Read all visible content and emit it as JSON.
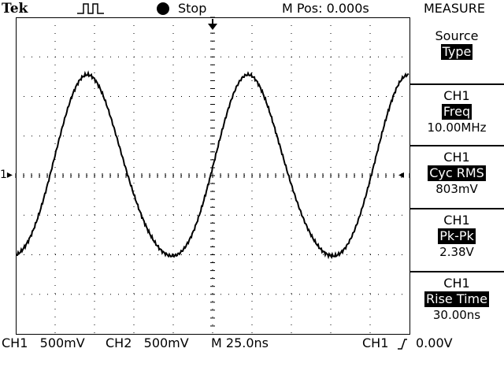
{
  "header": {
    "brand": "Tek",
    "acquisition_icon": "pulse-icon",
    "run_status": "Stop",
    "horizontal_position": "M Pos: 0.000s",
    "menu_title": "MEASURE"
  },
  "side_menu": [
    {
      "label": "Source",
      "selected": "Type",
      "value": ""
    },
    {
      "label": "CH1",
      "selected": "Freq",
      "value": "10.00MHz"
    },
    {
      "label": "CH1",
      "selected": "Cyc RMS",
      "value": "803mV"
    },
    {
      "label": "CH1",
      "selected": "Pk-Pk",
      "value": "2.38V"
    },
    {
      "label": "CH1",
      "selected": "Rise Time",
      "value": "30.00ns"
    }
  ],
  "markers": {
    "ch1_ground": "1",
    "trigger_position_icon": "trigger-arrow-down-icon",
    "trigger_level_icon": "trigger-level-arrow-icon"
  },
  "status": {
    "ch1_scale": "CH1   500mV",
    "ch2_scale": "CH2   500mV",
    "timebase": "M 25.0ns",
    "trigger": "CH1",
    "trigger_slope_icon": "rising-edge-icon",
    "trigger_level": "0.00V"
  }
}
